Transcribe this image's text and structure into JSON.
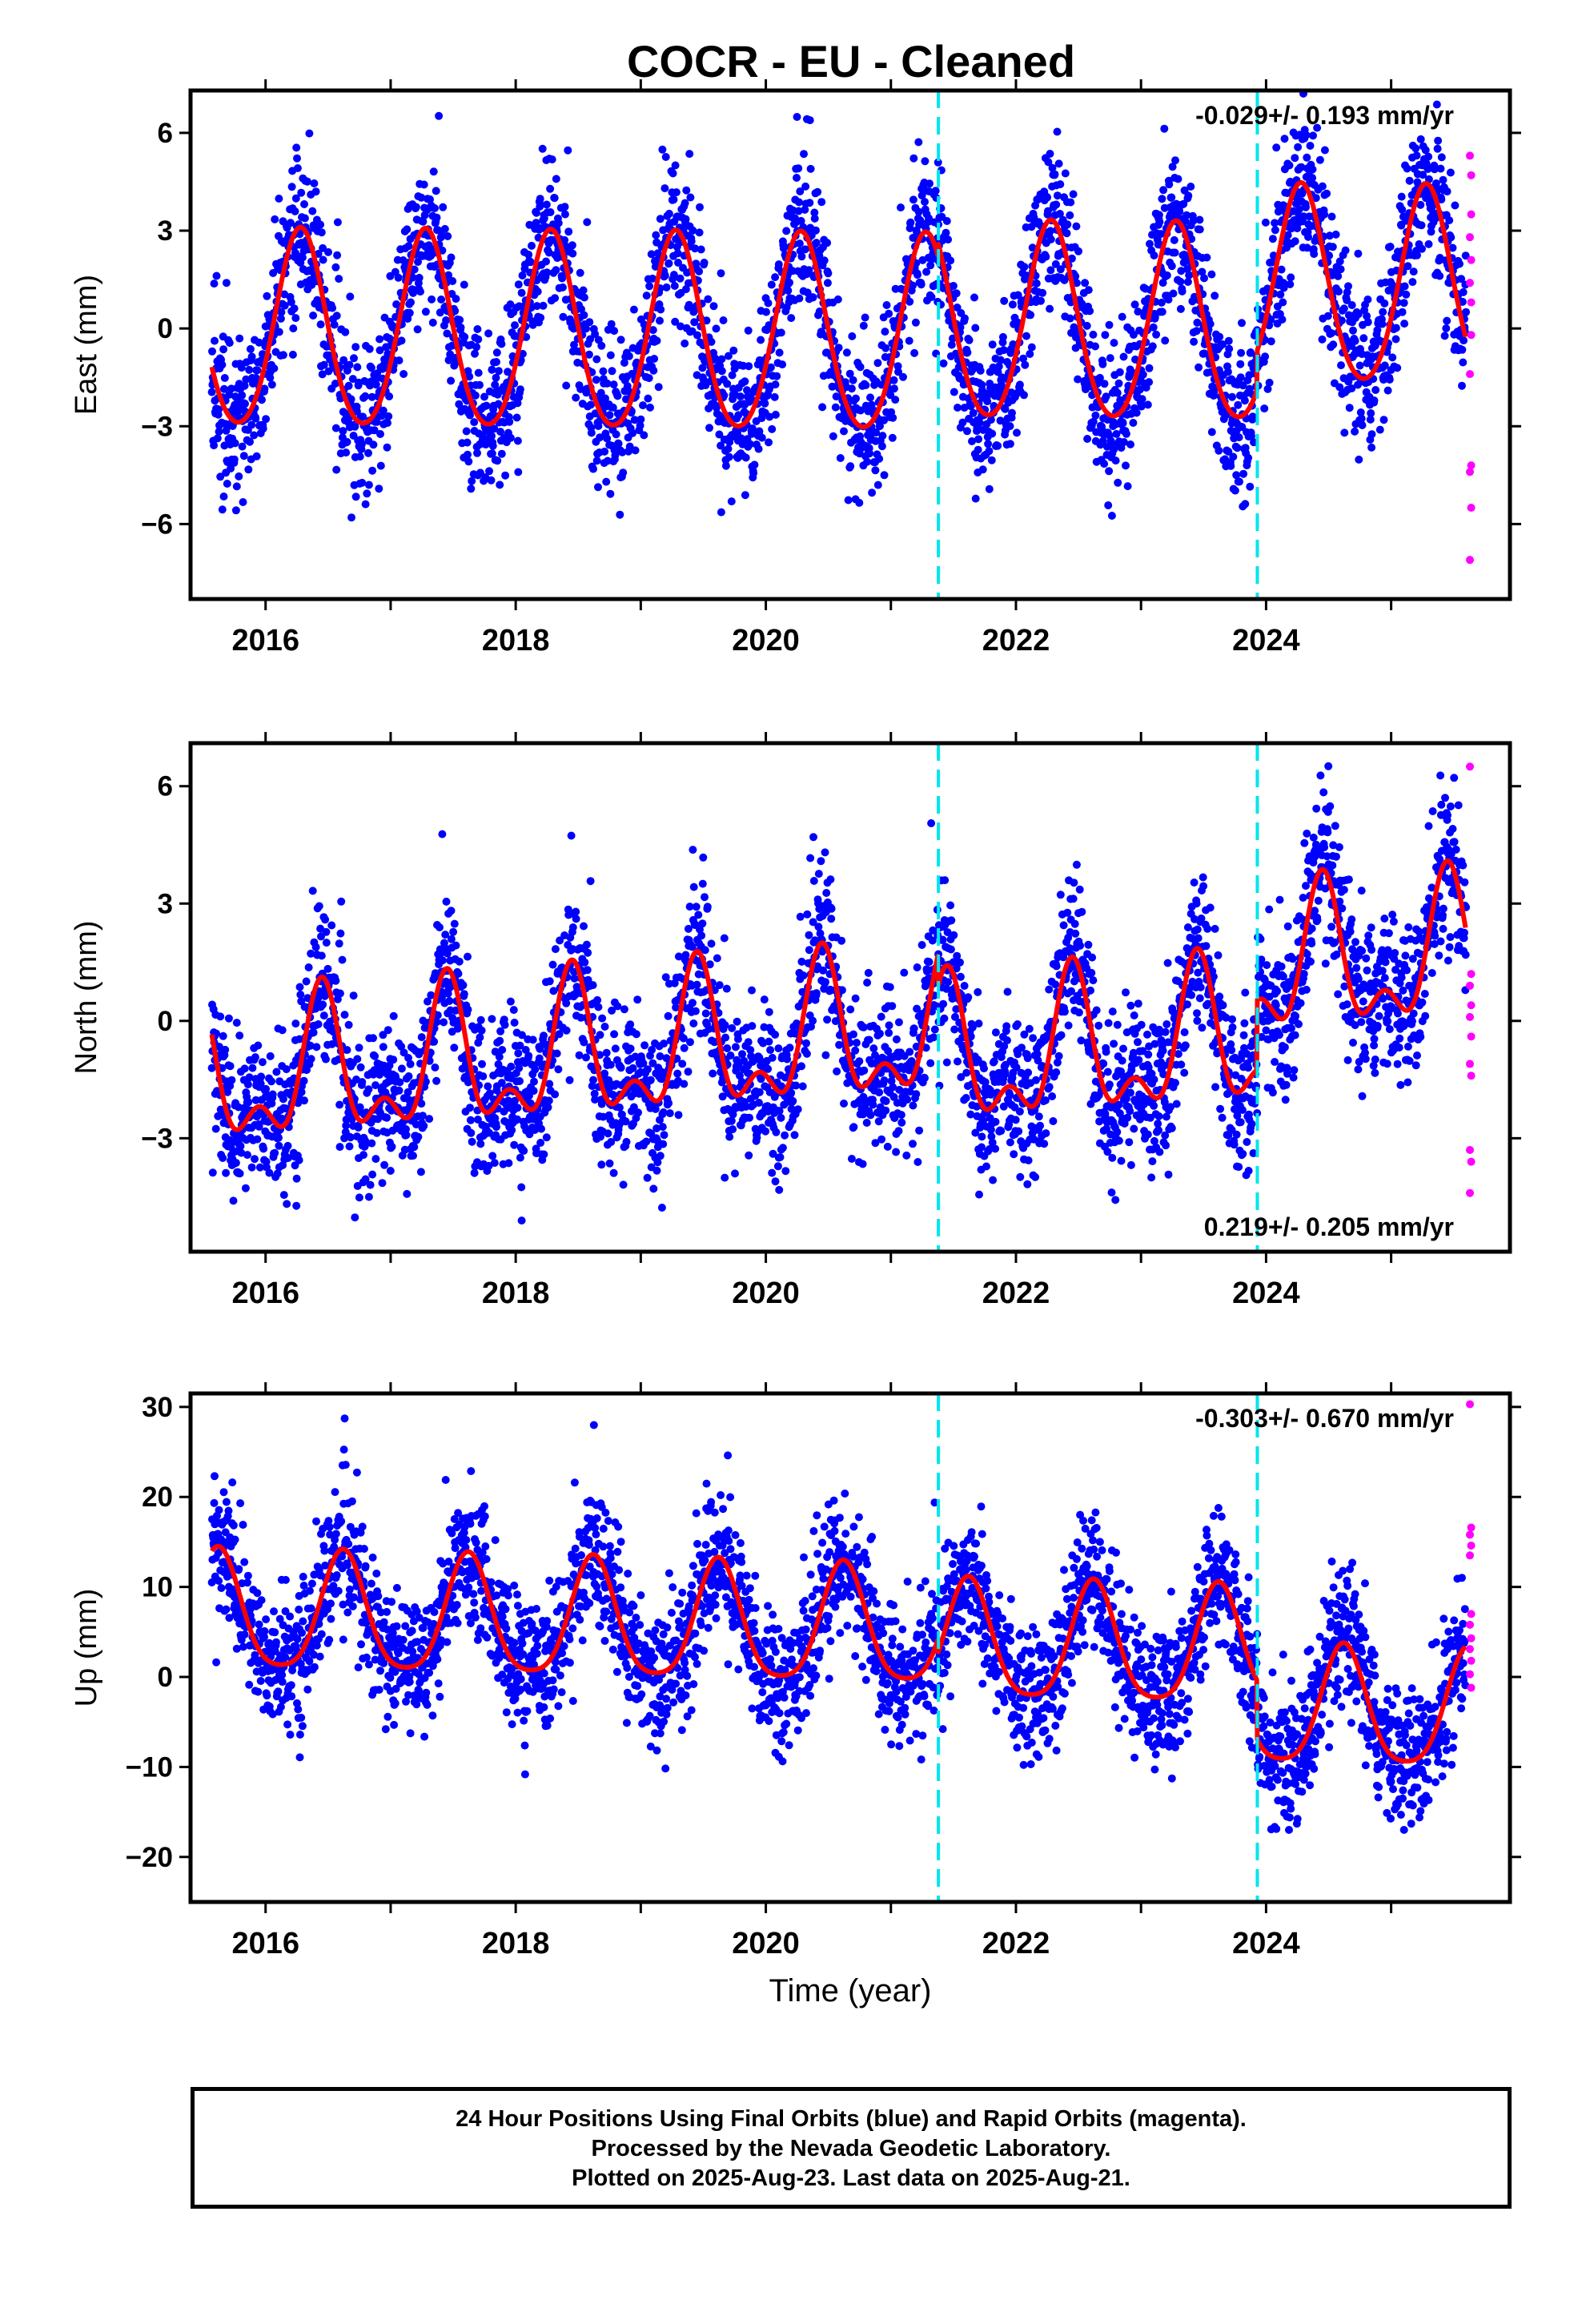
{
  "title": "COCR  - EU - Cleaned",
  "caption": [
    "24 Hour Positions Using Final Orbits (blue) and Rapid Orbits (magenta).",
    "Processed by the Nevada Geodetic Laboratory.",
    "Plotted on 2025-Aug-23. Last data on 2025-Aug-21."
  ],
  "colors": {
    "final": "#0000ff",
    "rapid": "#ff00ff",
    "model": "#ff0000",
    "event": "#00e5ee"
  },
  "chart_data": [
    {
      "type": "scatter",
      "ylabel": "East (mm)",
      "rate_label": "-0.029+/- 0.193 mm/yr",
      "ylim": [
        -8.3,
        7.3
      ],
      "yticks": [
        -6,
        -3,
        0,
        3,
        6
      ],
      "yticklabels": [
        "−6",
        "−3",
        "0",
        "3",
        "6"
      ],
      "xlim": [
        2015.4,
        2025.95
      ],
      "xticks": [
        2016,
        2018,
        2020,
        2022,
        2024
      ],
      "xticklabels": [
        "2016",
        "2018",
        "2020",
        "2022",
        "2024"
      ],
      "xlabel": "",
      "event_lines": [
        2021.38,
        2023.93
      ],
      "data_start": 2015.57,
      "data_end": 2025.6,
      "model": {
        "trend_mm_per_yr": -0.029,
        "offset_mm": -0.3,
        "annual_amplitude_mm": 3.0,
        "annual_peak_year_fraction": 0.28,
        "semiannual_amplitude_mm": 0.3,
        "steps": [
          {
            "year": 2021.38,
            "mm": 0.4
          },
          {
            "year": 2023.93,
            "mm": 1.2
          }
        ]
      },
      "scatter_sigma_mm": 1.2,
      "rapid_points": [
        [
          2025.63,
          5.3
        ],
        [
          2025.64,
          4.7
        ],
        [
          2025.64,
          3.5
        ],
        [
          2025.63,
          2.8
        ],
        [
          2025.64,
          2.1
        ],
        [
          2025.63,
          1.4
        ],
        [
          2025.64,
          0.8
        ],
        [
          2025.64,
          -0.2
        ],
        [
          2025.63,
          -1.4
        ],
        [
          2025.64,
          -4.2
        ],
        [
          2025.63,
          -4.4
        ],
        [
          2025.64,
          -5.5
        ],
        [
          2025.63,
          -7.1
        ]
      ]
    },
    {
      "type": "scatter",
      "ylabel": "North (mm)",
      "rate_label": "0.219+/- 0.205 mm/yr",
      "ylim": [
        -5.9,
        7.1
      ],
      "yticks": [
        -3,
        0,
        3,
        6
      ],
      "yticklabels": [
        "−3",
        "0",
        "3",
        "6"
      ],
      "xlim": [
        2015.4,
        2025.95
      ],
      "xticks": [
        2016,
        2018,
        2020,
        2022,
        2024
      ],
      "xticklabels": [
        "2016",
        "2018",
        "2020",
        "2022",
        "2024"
      ],
      "xlabel": "",
      "event_lines": [
        2021.38,
        2023.93
      ],
      "data_start": 2015.57,
      "data_end": 2025.6,
      "model": {
        "trend_mm_per_yr": 0.219,
        "offset_mm": -0.6,
        "annual_amplitude_mm": 1.6,
        "annual_peak_year_fraction": 0.45,
        "semiannual_amplitude_mm": 0.9,
        "steps": [
          {
            "year": 2021.38,
            "mm": -0.8
          },
          {
            "year": 2023.93,
            "mm": 1.8
          }
        ]
      },
      "scatter_sigma_mm": 1.0,
      "rapid_points": [
        [
          2025.63,
          6.5
        ],
        [
          2025.64,
          1.2
        ],
        [
          2025.63,
          0.9
        ],
        [
          2025.64,
          0.4
        ],
        [
          2025.63,
          0.1
        ],
        [
          2025.64,
          -0.4
        ],
        [
          2025.63,
          -1.1
        ],
        [
          2025.64,
          -1.4
        ],
        [
          2025.63,
          -3.3
        ],
        [
          2025.64,
          -3.6
        ],
        [
          2025.63,
          -4.4
        ]
      ]
    },
    {
      "type": "scatter",
      "ylabel": "Up (mm)",
      "rate_label": "-0.303+/- 0.670 mm/yr",
      "ylim": [
        -25,
        31.5
      ],
      "yticks": [
        -20,
        -10,
        0,
        10,
        20,
        30
      ],
      "yticklabels": [
        "−20",
        "−10",
        "0",
        "10",
        "20",
        "30"
      ],
      "xlim": [
        2015.4,
        2025.95
      ],
      "xticks": [
        2016,
        2018,
        2020,
        2022,
        2024
      ],
      "xticklabels": [
        "2016",
        "2018",
        "2020",
        "2022",
        "2024"
      ],
      "xlabel": "Time (year)",
      "event_lines": [
        2021.38,
        2023.93
      ],
      "data_start": 2015.57,
      "data_end": 2025.6,
      "model": {
        "trend_mm_per_yr": -0.303,
        "offset_mm": 5.5,
        "annual_amplitude_mm": 6.5,
        "annual_peak_year_fraction": 0.62,
        "semiannual_amplitude_mm": 1.2,
        "steps": [
          {
            "year": 2021.38,
            "mm": -1.5
          },
          {
            "year": 2023.93,
            "mm": -6.5
          }
        ]
      },
      "scatter_sigma_mm": 3.8,
      "rapid_points": [
        [
          2025.63,
          30.3
        ],
        [
          2025.64,
          16.6
        ],
        [
          2025.63,
          15.8
        ],
        [
          2025.64,
          14.6
        ],
        [
          2025.63,
          13.5
        ],
        [
          2025.64,
          7.0
        ],
        [
          2025.63,
          5.8
        ],
        [
          2025.64,
          4.3
        ],
        [
          2025.63,
          3.1
        ],
        [
          2025.64,
          1.8
        ],
        [
          2025.63,
          0.3
        ],
        [
          2025.64,
          -1.2
        ]
      ]
    }
  ]
}
